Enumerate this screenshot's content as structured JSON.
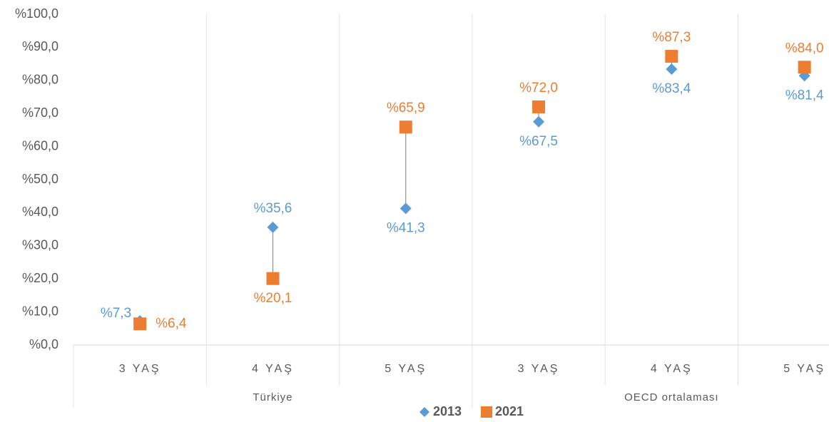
{
  "chart_data": {
    "type": "dot",
    "categories": [
      "3 YAŞ",
      "4 YAŞ",
      "5 YAŞ",
      "3 YAŞ",
      "4 YAŞ",
      "5 YAŞ"
    ],
    "groups": [
      "Türkiye",
      "OECD ortalaması"
    ],
    "series": [
      {
        "name": "2013",
        "color": "#5b9bd5",
        "values": [
          7.3,
          35.6,
          41.3,
          67.5,
          83.4,
          81.4
        ],
        "value_labels": [
          "%7,3",
          "%35,6",
          "%41,3",
          "%67,5",
          "%83,4",
          "%81,4"
        ]
      },
      {
        "name": "2021",
        "color": "#ed7d31",
        "values": [
          6.4,
          20.1,
          65.9,
          72.0,
          87.3,
          84.0
        ],
        "value_labels": [
          "%6,4",
          "%20,1",
          "%65,9",
          "%72,0",
          "%87,3",
          "%84,0"
        ]
      }
    ],
    "ylim": [
      0,
      100
    ],
    "yticks": [
      {
        "value": 0,
        "label": "%0,0"
      },
      {
        "value": 10,
        "label": "%10,0"
      },
      {
        "value": 20,
        "label": "%20,0"
      },
      {
        "value": 30,
        "label": "%30,0"
      },
      {
        "value": 40,
        "label": "%40,0"
      },
      {
        "value": 50,
        "label": "%50,0"
      },
      {
        "value": 60,
        "label": "%60,0"
      },
      {
        "value": 70,
        "label": "%70,0"
      },
      {
        "value": 80,
        "label": "%80,0"
      },
      {
        "value": 90,
        "label": "%90,0"
      },
      {
        "value": 100,
        "label": "%100,0"
      }
    ],
    "legend": "bottom"
  }
}
